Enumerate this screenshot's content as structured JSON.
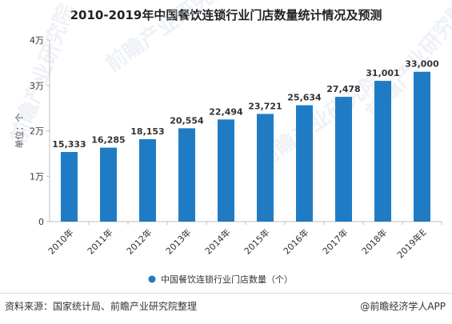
{
  "header": {
    "title": "2010-2019年中国餐饮连锁行业门店数量统计情况及预测"
  },
  "footer": {
    "source": "资料来源：国家统计局、前瞻产业研究院整理",
    "brand_mark": "@",
    "brand_name": "前瞻经济学人APP"
  },
  "watermark": {
    "text": "前瞻产业研究院"
  },
  "colors": {
    "bar": "#1f7cc4",
    "axis": "#bfbfbf",
    "text": "#333333"
  },
  "chart_data": {
    "type": "bar",
    "title": "2010-2019年中国餐饮连锁行业门店数量统计情况及预测",
    "ylabel": "单位：个",
    "xlabel": "",
    "categories": [
      "2010年",
      "2011年",
      "2012年",
      "2013年",
      "2014年",
      "2015年",
      "2016年",
      "2017年",
      "2018年",
      "2019年E"
    ],
    "series": [
      {
        "name": "中国餐饮连锁行业门店数量（个）",
        "values": [
          15333,
          16285,
          18153,
          20554,
          22494,
          23721,
          25634,
          27478,
          31001,
          33000
        ],
        "labels": [
          "15,333",
          "16,285",
          "18,153",
          "20,554",
          "22,494",
          "23,721",
          "25,634",
          "27,478",
          "31,001",
          "33,000"
        ]
      }
    ],
    "ylim": [
      0,
      40000
    ],
    "yticks": [
      0,
      10000,
      20000,
      30000,
      40000
    ],
    "ytick_labels": [
      "0",
      "1万",
      "2万",
      "3万",
      "4万"
    ],
    "grid": false,
    "legend": "bottom-center"
  }
}
